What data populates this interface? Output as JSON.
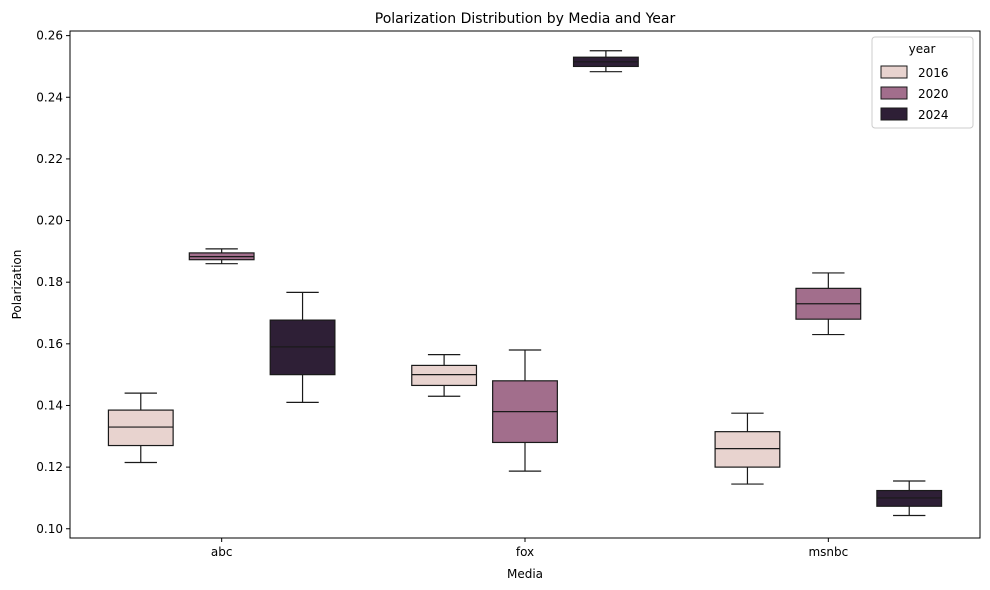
{
  "chart_data": {
    "type": "boxplot",
    "title": "Polarization Distribution by Media and Year",
    "xlabel": "Media",
    "ylabel": "Polarization",
    "ylim": [
      0.097,
      0.2615
    ],
    "yticks": [
      "0.10",
      "0.12",
      "0.14",
      "0.16",
      "0.18",
      "0.20",
      "0.22",
      "0.24",
      "0.26"
    ],
    "categories": [
      "abc",
      "fox",
      "msnbc"
    ],
    "legend": {
      "title": "year",
      "position": "top-right"
    },
    "grid": false,
    "series": [
      {
        "name": "2016",
        "color": "#e8d3cf",
        "boxes": [
          {
            "whislo": 0.1215,
            "q1": 0.127,
            "median": 0.133,
            "q3": 0.1385,
            "whishi": 0.144
          },
          {
            "whislo": 0.143,
            "q1": 0.1465,
            "median": 0.15,
            "q3": 0.153,
            "whishi": 0.1565
          },
          {
            "whislo": 0.1145,
            "q1": 0.12,
            "median": 0.126,
            "q3": 0.1315,
            "whishi": 0.1375
          }
        ]
      },
      {
        "name": "2020",
        "color": "#a26e8c",
        "boxes": [
          {
            "whislo": 0.186,
            "q1": 0.1873,
            "median": 0.1883,
            "q3": 0.1895,
            "whishi": 0.1908
          },
          {
            "whislo": 0.1187,
            "q1": 0.128,
            "median": 0.138,
            "q3": 0.148,
            "whishi": 0.158
          },
          {
            "whislo": 0.163,
            "q1": 0.168,
            "median": 0.173,
            "q3": 0.178,
            "whishi": 0.183
          }
        ]
      },
      {
        "name": "2024",
        "color": "#2e1f36",
        "boxes": [
          {
            "whislo": 0.141,
            "q1": 0.15,
            "median": 0.159,
            "q3": 0.1677,
            "whishi": 0.1767
          },
          {
            "whislo": 0.2483,
            "q1": 0.25,
            "median": 0.2515,
            "q3": 0.253,
            "whishi": 0.2551
          },
          {
            "whislo": 0.1043,
            "q1": 0.1073,
            "median": 0.11,
            "q3": 0.1124,
            "whishi": 0.1155
          }
        ]
      }
    ]
  }
}
